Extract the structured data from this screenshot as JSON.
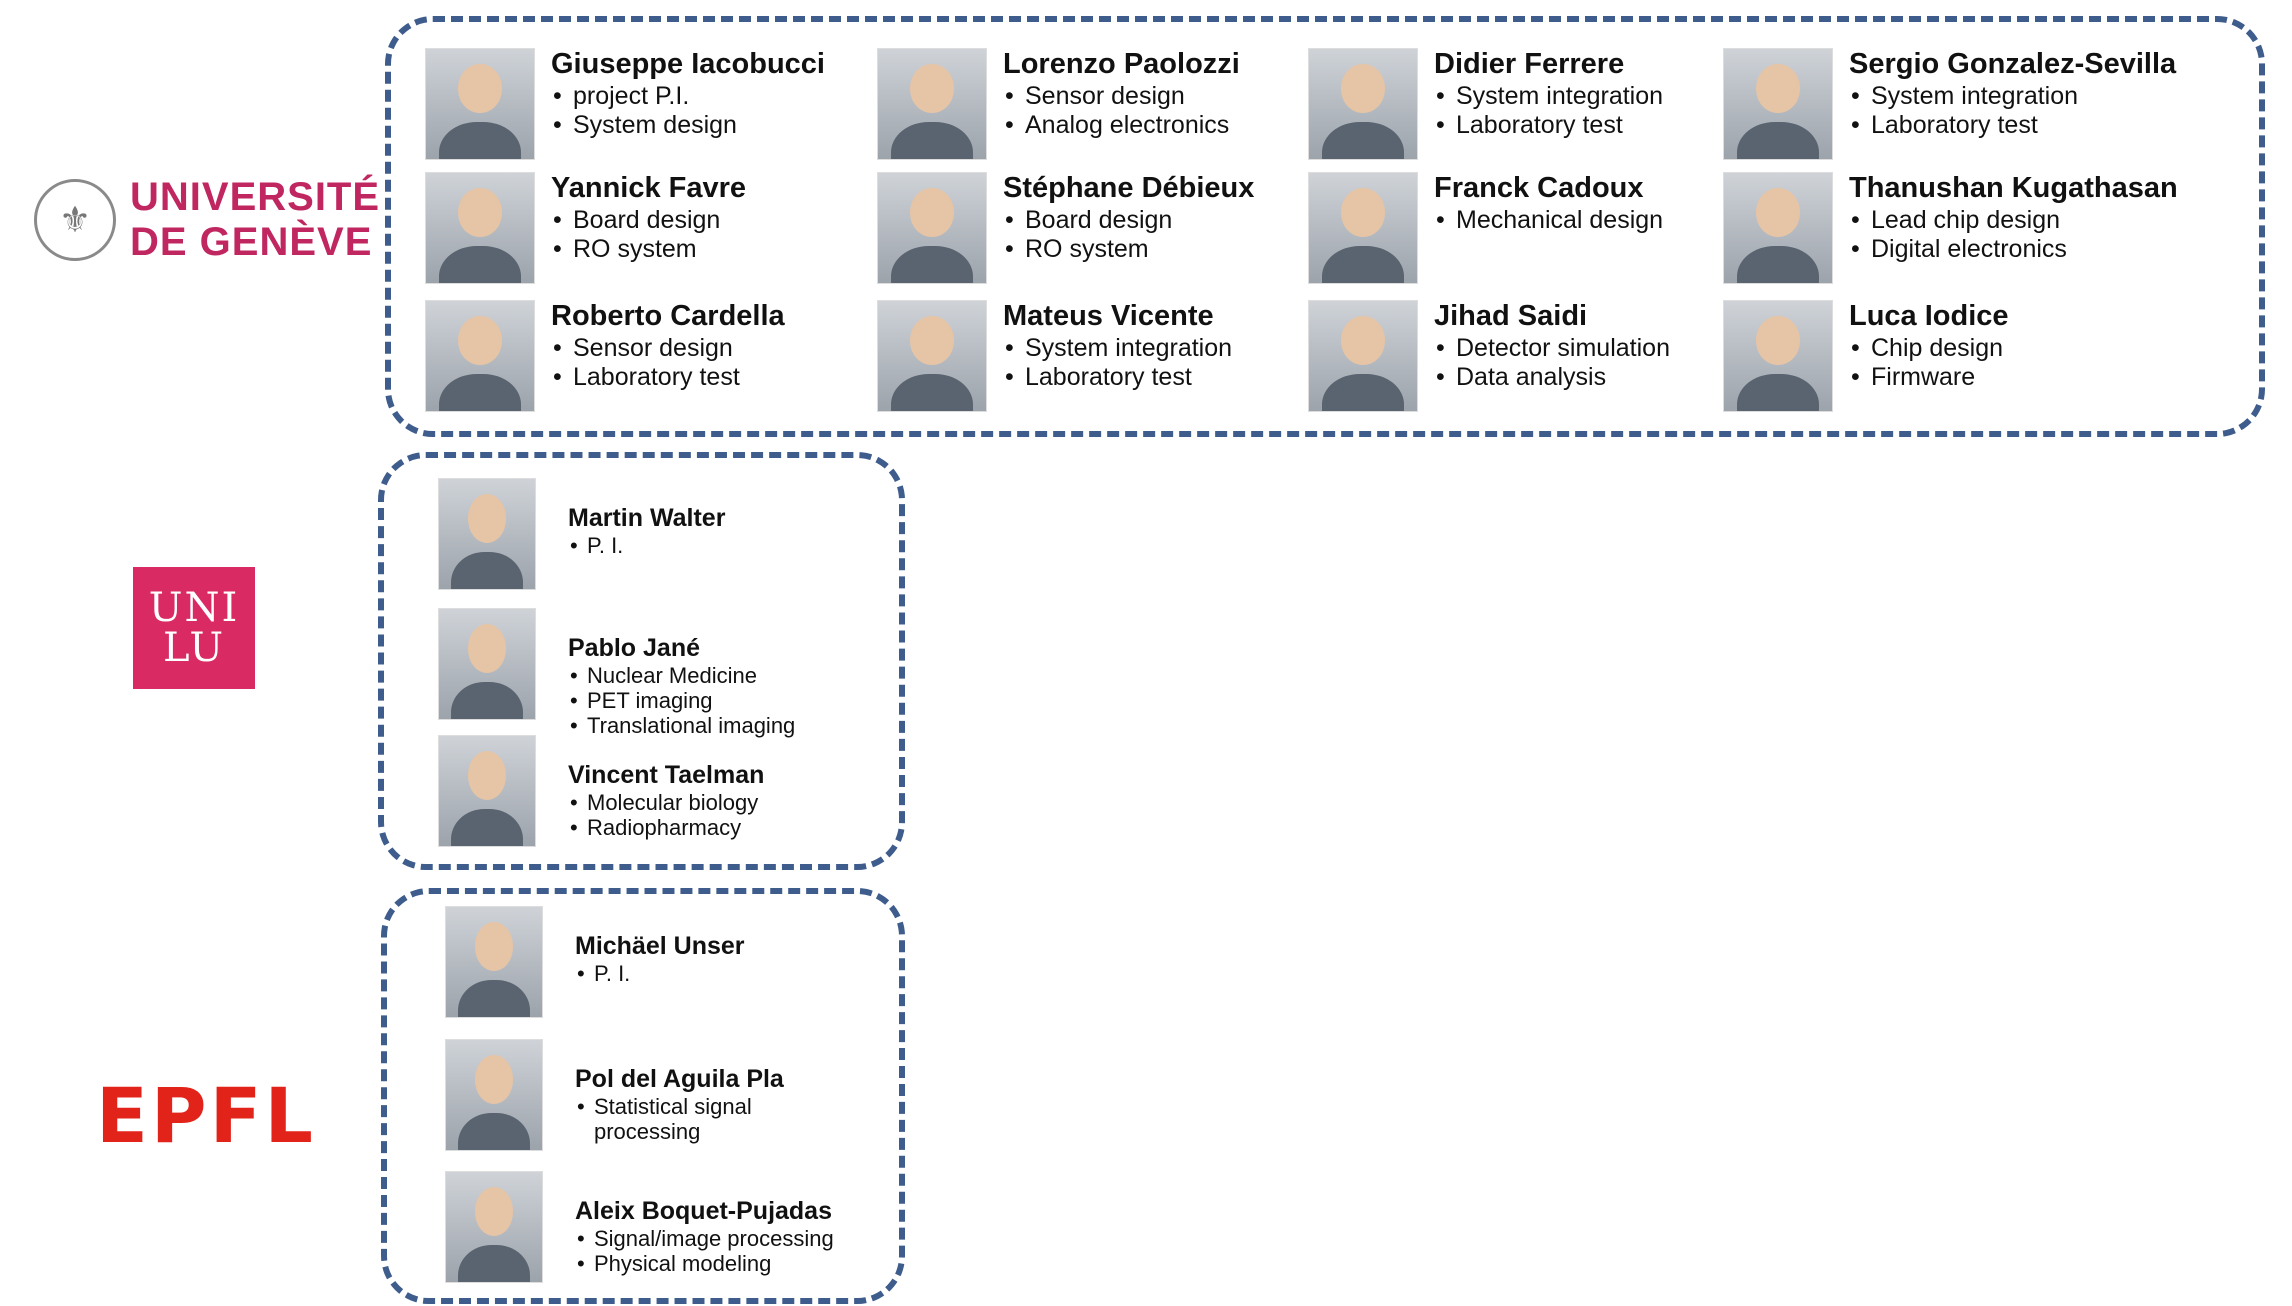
{
  "logos": {
    "unige_line1": "UNIVERSITÉ",
    "unige_line2": "DE GENÈVE",
    "unilu_line1": "UNI",
    "unilu_line2": "LU",
    "epfl": "EPFL"
  },
  "unige": [
    {
      "name": "Giuseppe Iacobucci",
      "roles": [
        "project P.I.",
        "System design"
      ]
    },
    {
      "name": "Lorenzo Paolozzi",
      "roles": [
        "Sensor design",
        "Analog electronics"
      ]
    },
    {
      "name": "Didier Ferrere",
      "roles": [
        "System integration",
        "Laboratory test"
      ]
    },
    {
      "name": "Sergio Gonzalez-Sevilla",
      "roles": [
        "System integration",
        "Laboratory test"
      ]
    },
    {
      "name": "Yannick Favre",
      "roles": [
        "Board design",
        "RO system"
      ]
    },
    {
      "name": "Stéphane Débieux",
      "roles": [
        "Board design",
        "RO system"
      ]
    },
    {
      "name": "Franck Cadoux",
      "roles": [
        "Mechanical design"
      ]
    },
    {
      "name": "Thanushan Kugathasan",
      "roles": [
        "Lead chip design",
        "Digital electronics"
      ]
    },
    {
      "name": "Roberto Cardella",
      "roles": [
        "Sensor design",
        "Laboratory test"
      ]
    },
    {
      "name": "Mateus Vicente",
      "roles": [
        "System integration",
        "Laboratory test"
      ]
    },
    {
      "name": "Jihad Saidi",
      "roles": [
        "Detector simulation",
        "Data analysis"
      ]
    },
    {
      "name": "Luca Iodice",
      "roles": [
        "Chip design",
        "Firmware"
      ]
    }
  ],
  "unilu": [
    {
      "name": "Martin Walter",
      "roles": [
        "P. I."
      ]
    },
    {
      "name": "Pablo Jané",
      "roles": [
        "Nuclear Medicine",
        "PET imaging",
        "Translational imaging"
      ]
    },
    {
      "name": "Vincent Taelman",
      "roles": [
        "Molecular biology",
        "Radiopharmacy"
      ]
    }
  ],
  "epfl": [
    {
      "name": "Michäel Unser",
      "roles": [
        "P. I."
      ]
    },
    {
      "name": "Pol del Aguila Pla",
      "roles": [
        "Statistical signal processing"
      ]
    },
    {
      "name": "Aleix Boquet-Pujadas",
      "roles": [
        "Signal/image processing",
        "Physical modeling"
      ]
    }
  ]
}
